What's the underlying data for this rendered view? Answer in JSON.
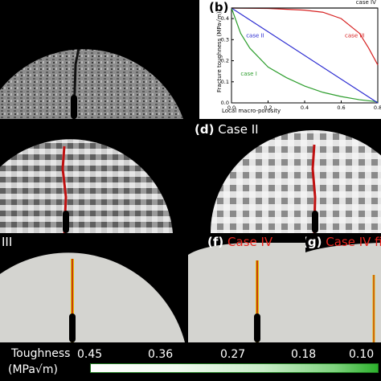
{
  "panels": {
    "b_label": "(b)",
    "d_label": "(d)",
    "d_title": "Case II",
    "f_label": "(f)",
    "f_title": "Case IV",
    "g_label": "(g)",
    "g_title": "Case IV fir",
    "left_mid_label": "III"
  },
  "chart_data": {
    "type": "line",
    "xlabel": "Local macro-porosity",
    "ylabel": "Fracture toughness (MPa√m)",
    "xlim": [
      0,
      0.8
    ],
    "ylim": [
      0,
      0.45
    ],
    "x_ticks": [
      "0.0",
      "0.2",
      "0.4",
      "0.6",
      "0.8"
    ],
    "y_ticks": [
      "0.0",
      "0.1",
      "0.2",
      "0.3",
      "0.4"
    ],
    "series": [
      {
        "name": "case I",
        "color": "#2e9e2e",
        "x": [
          0,
          0.05,
          0.1,
          0.2,
          0.3,
          0.4,
          0.5,
          0.6,
          0.7,
          0.8
        ],
        "y": [
          0.45,
          0.33,
          0.26,
          0.17,
          0.12,
          0.08,
          0.05,
          0.03,
          0.015,
          0.005
        ]
      },
      {
        "name": "case II",
        "color": "#2b2bd1",
        "x": [
          0,
          0.8
        ],
        "y": [
          0.45,
          0.0
        ]
      },
      {
        "name": "case III",
        "color": "#d62020",
        "x": [
          0,
          0.2,
          0.4,
          0.5,
          0.6,
          0.7,
          0.75,
          0.8
        ],
        "y": [
          0.45,
          0.448,
          0.44,
          0.43,
          0.4,
          0.33,
          0.26,
          0.18
        ]
      },
      {
        "name": "case IV",
        "color": "#111111",
        "x": [
          0,
          0.8
        ],
        "y": [
          0.45,
          0.45
        ]
      }
    ]
  },
  "colorbar": {
    "title_line1": "Toughness",
    "title_line2": "(MPa√m)",
    "ticks": [
      "0.45",
      "0.36",
      "0.27",
      "0.18",
      "0.10"
    ]
  }
}
